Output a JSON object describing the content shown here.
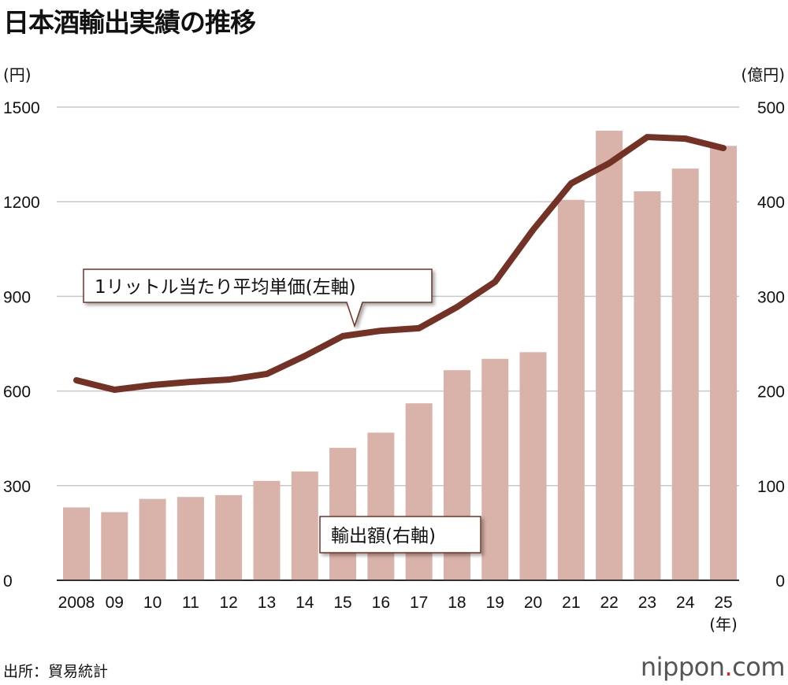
{
  "chart_data": {
    "type": "bar+line",
    "title": "日本酒輸出実績の推移",
    "categories": [
      "2008",
      "09",
      "10",
      "11",
      "12",
      "13",
      "14",
      "15",
      "16",
      "17",
      "18",
      "19",
      "20",
      "21",
      "22",
      "23",
      "24",
      "25"
    ],
    "x_unit": "(年)",
    "left_axis": {
      "unit": "(円)",
      "range": [
        0,
        1500
      ],
      "ticks": [
        0,
        300,
        600,
        900,
        1200,
        1500
      ]
    },
    "right_axis": {
      "unit": "(億円)",
      "range": [
        0,
        500
      ],
      "ticks": [
        0,
        100,
        200,
        300,
        400,
        500
      ]
    },
    "grid": true,
    "series": [
      {
        "name": "輸出額(右軸)",
        "type": "bar",
        "axis": "right",
        "color": "#d9b2a9",
        "values": [
          77,
          72,
          86,
          88,
          90,
          105,
          115,
          140,
          156,
          187,
          222,
          234,
          241,
          402,
          475,
          411,
          435,
          459
        ]
      },
      {
        "name": "1リットル当たり平均単価(左軸)",
        "type": "line",
        "axis": "left",
        "color": "#733225",
        "values": [
          634,
          604,
          619,
          629,
          636,
          654,
          711,
          774,
          791,
          799,
          866,
          946,
          1111,
          1258,
          1322,
          1405,
          1400,
          1370
        ]
      }
    ]
  },
  "source": "出所：貿易統計",
  "logo": {
    "text": "nippon",
    "dot": ".",
    "suffix": "com"
  }
}
